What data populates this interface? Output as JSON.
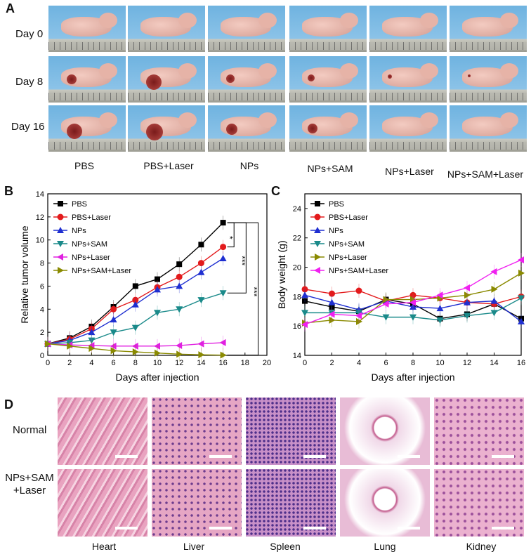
{
  "panelA": {
    "label": "A",
    "rows": [
      "Day 0",
      "Day 8",
      "Day 16"
    ],
    "groups": [
      "PBS",
      "PBS+Laser",
      "NPs",
      "NPs+SAM",
      "NPs+Laser",
      "NPs+SAM+Laser"
    ]
  },
  "panelB": {
    "label": "B"
  },
  "panelC": {
    "label": "C"
  },
  "panelD": {
    "label": "D",
    "rows": [
      "Normal",
      "NPs+SAM",
      "+Laser"
    ],
    "organs": [
      "Heart",
      "Liver",
      "Spleen",
      "Lung",
      "Kidney"
    ]
  },
  "chart_data": [
    {
      "type": "line",
      "title": "",
      "xlabel": "Days after injection",
      "ylabel": "Relative tumor volume",
      "xlim": [
        0,
        20
      ],
      "ylim": [
        0,
        14
      ],
      "xticks": [
        0,
        2,
        4,
        6,
        8,
        10,
        12,
        14,
        16,
        18,
        20
      ],
      "yticks": [
        0,
        2,
        4,
        6,
        8,
        10,
        12,
        14
      ],
      "x": [
        0,
        2,
        4,
        6,
        8,
        10,
        12,
        14,
        16
      ],
      "legend": "top-left",
      "significance": [
        "*",
        "***",
        "***"
      ],
      "series": [
        {
          "name": "PBS",
          "color": "#000000",
          "marker": "square",
          "values": [
            1,
            1.5,
            2.5,
            4.2,
            6.0,
            6.6,
            7.9,
            9.6,
            11.5
          ]
        },
        {
          "name": "PBS+Laser",
          "color": "#e31a1c",
          "marker": "circle",
          "values": [
            1,
            1.4,
            2.3,
            4.0,
            4.8,
            5.9,
            6.8,
            8.0,
            9.4
          ]
        },
        {
          "name": "NPs",
          "color": "#1f2fd1",
          "marker": "triangle-up",
          "values": [
            1,
            1.3,
            2.0,
            3.1,
            4.4,
            5.7,
            6.0,
            7.2,
            8.4
          ]
        },
        {
          "name": "NPs+SAM",
          "color": "#1a8a8a",
          "marker": "triangle-down",
          "values": [
            1,
            1.1,
            1.3,
            2.0,
            2.4,
            3.7,
            4.0,
            4.8,
            5.4
          ]
        },
        {
          "name": "NPs+Laser",
          "color": "#e020e0",
          "marker": "triangle-left",
          "values": [
            1,
            0.9,
            0.85,
            0.8,
            0.8,
            0.8,
            0.85,
            1.0,
            1.1
          ]
        },
        {
          "name": "NPs+SAM+Laser",
          "color": "#8a8a00",
          "marker": "triangle-right",
          "values": [
            1,
            0.8,
            0.6,
            0.4,
            0.3,
            0.2,
            0.1,
            0.05,
            0.02
          ]
        }
      ]
    },
    {
      "type": "line",
      "title": "",
      "xlabel": "Days after injection",
      "ylabel": "Body weight (g)",
      "xlim": [
        0,
        16
      ],
      "ylim": [
        14,
        25
      ],
      "xticks": [
        0,
        2,
        4,
        6,
        8,
        10,
        12,
        14,
        16
      ],
      "yticks": [
        14,
        16,
        18,
        20,
        22,
        24
      ],
      "x": [
        0,
        2,
        4,
        6,
        8,
        10,
        12,
        14,
        16
      ],
      "legend": "top-left",
      "series": [
        {
          "name": "PBS",
          "color": "#000000",
          "marker": "square",
          "values": [
            17.7,
            17.3,
            17.0,
            17.8,
            17.5,
            16.5,
            16.8,
            17.5,
            16.5
          ]
        },
        {
          "name": "PBS+Laser",
          "color": "#e31a1c",
          "marker": "circle",
          "values": [
            18.5,
            18.2,
            18.4,
            17.7,
            18.1,
            17.9,
            17.6,
            17.5,
            18.0
          ]
        },
        {
          "name": "NPs",
          "color": "#1f2fd1",
          "marker": "triangle-up",
          "values": [
            18.1,
            17.6,
            17.1,
            17.7,
            17.3,
            17.2,
            17.6,
            17.7,
            16.3
          ]
        },
        {
          "name": "NPs+SAM",
          "color": "#1a8a8a",
          "marker": "triangle-down",
          "values": [
            16.9,
            16.9,
            16.9,
            16.6,
            16.6,
            16.4,
            16.7,
            16.9,
            17.9
          ]
        },
        {
          "name": "NPs+Laser",
          "color": "#8a8a00",
          "marker": "triangle-right",
          "values": [
            16.2,
            16.4,
            16.3,
            17.8,
            17.8,
            17.9,
            18.1,
            18.5,
            19.6
          ]
        },
        {
          "name": "NPs+SAM+Laser",
          "color": "#f020f0",
          "marker": "triangle-left",
          "values": [
            16.1,
            16.8,
            16.7,
            17.5,
            17.6,
            18.1,
            18.6,
            19.7,
            20.5
          ]
        }
      ]
    }
  ]
}
